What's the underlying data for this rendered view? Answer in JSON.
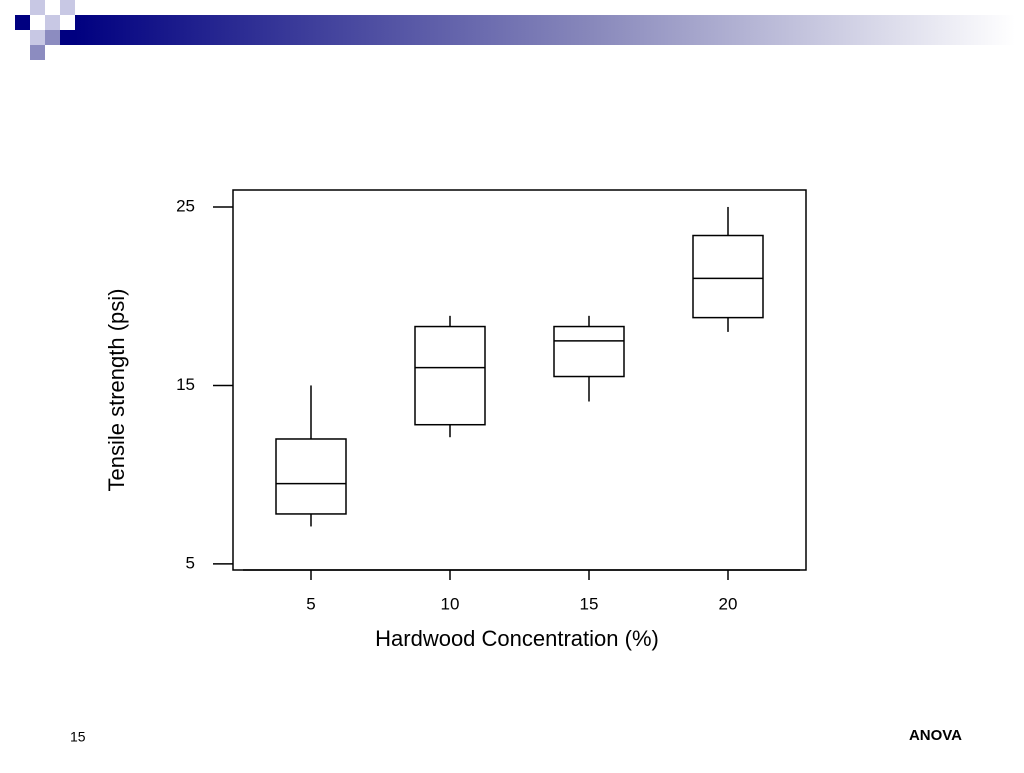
{
  "chart_data": {
    "type": "box",
    "xlabel": "Hardwood Concentration (%)",
    "ylabel": "Tensile strength (psi)",
    "categories": [
      "5",
      "10",
      "15",
      "20"
    ],
    "min": [
      7.1,
      12.1,
      14.1,
      18.0
    ],
    "q1": [
      7.8,
      12.8,
      15.5,
      18.8
    ],
    "median": [
      9.5,
      16.0,
      17.5,
      21.0
    ],
    "q3": [
      12.0,
      18.3,
      18.3,
      23.4
    ],
    "max": [
      15.0,
      18.9,
      18.9,
      25.0
    ],
    "color": "#000000",
    "ylim": [
      4.66,
      25.95
    ],
    "yticks": [
      5,
      15,
      25
    ]
  },
  "slide": {
    "number": "15",
    "footer": "ANOVA"
  }
}
